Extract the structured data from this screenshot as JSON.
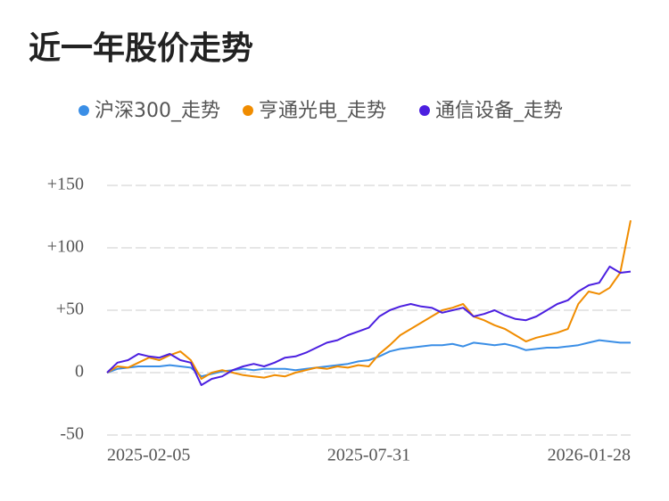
{
  "chart_data": {
    "type": "line",
    "title": "近一年股价走势",
    "categories": [
      "2025-02-05",
      null,
      null,
      null,
      null,
      null,
      null,
      null,
      null,
      null,
      null,
      null,
      null,
      null,
      null,
      null,
      null,
      null,
      null,
      null,
      null,
      null,
      null,
      null,
      null,
      "2025-07-31",
      null,
      null,
      null,
      null,
      null,
      null,
      null,
      null,
      null,
      null,
      null,
      null,
      null,
      null,
      null,
      null,
      null,
      null,
      null,
      null,
      null,
      null,
      null,
      null,
      "2026-01-28"
    ],
    "series": [
      {
        "name": "沪深300_走势",
        "color": "#3a8ee6",
        "values": [
          0,
          3,
          4,
          5,
          5,
          5,
          6,
          5,
          4,
          -3,
          -1,
          1,
          2,
          3,
          2,
          3,
          3,
          3,
          2,
          3,
          4,
          5,
          6,
          7,
          9,
          10,
          13,
          17,
          19,
          20,
          21,
          22,
          22,
          23,
          21,
          24,
          23,
          22,
          23,
          21,
          18,
          19,
          20,
          20,
          21,
          22,
          24,
          26,
          25,
          24,
          24
        ]
      },
      {
        "name": "亨通光电_走势",
        "color": "#f08c00",
        "values": [
          0,
          5,
          4,
          8,
          12,
          10,
          14,
          17,
          10,
          -5,
          0,
          2,
          0,
          -2,
          -3,
          -4,
          -2,
          -3,
          0,
          2,
          4,
          3,
          5,
          4,
          6,
          5,
          15,
          22,
          30,
          35,
          40,
          45,
          50,
          52,
          55,
          45,
          42,
          38,
          35,
          30,
          25,
          28,
          30,
          32,
          35,
          55,
          65,
          63,
          68,
          80,
          122
        ]
      },
      {
        "name": "通信设备_走势",
        "color": "#4b1fe0",
        "values": [
          0,
          8,
          10,
          15,
          13,
          12,
          15,
          10,
          8,
          -10,
          -5,
          -3,
          2,
          5,
          7,
          5,
          8,
          12,
          13,
          16,
          20,
          24,
          26,
          30,
          33,
          36,
          45,
          50,
          53,
          55,
          53,
          52,
          48,
          50,
          52,
          45,
          47,
          50,
          46,
          43,
          42,
          45,
          50,
          55,
          58,
          65,
          70,
          72,
          85,
          80,
          81
        ]
      }
    ],
    "ylim": [
      -50,
      150
    ],
    "yticks": [
      {
        "value": -50,
        "label": "-50"
      },
      0,
      {
        "value": 50,
        "label": "+50"
      },
      {
        "value": 100,
        "label": "+100"
      },
      {
        "value": 150,
        "label": "+150"
      }
    ],
    "grid": true
  }
}
